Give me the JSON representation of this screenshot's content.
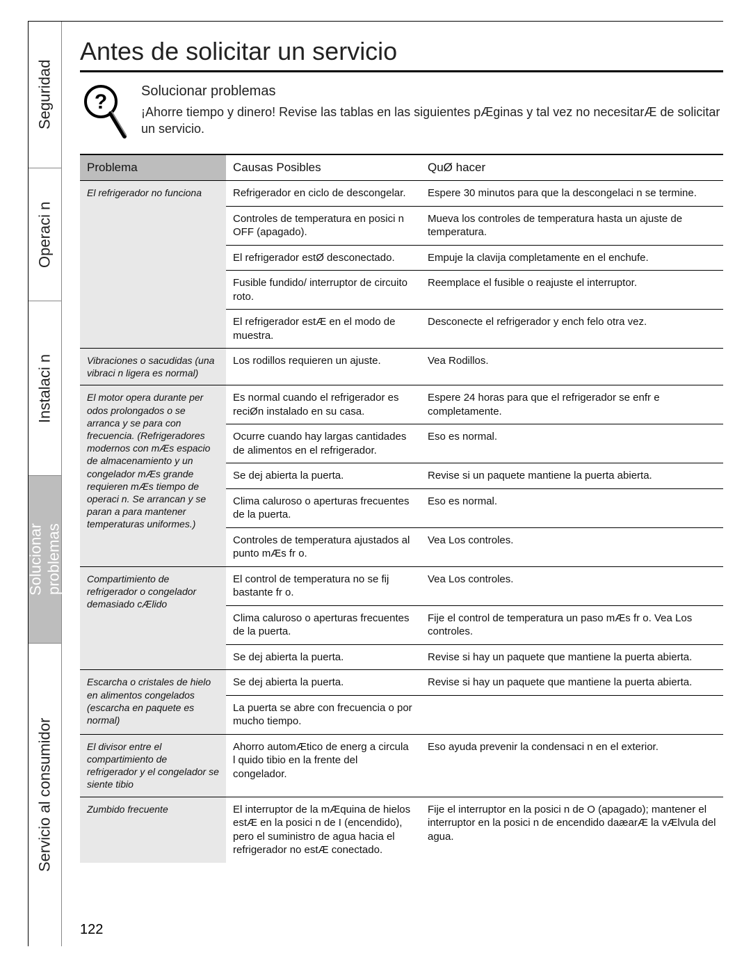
{
  "page": {
    "title": "Antes de solicitar un servicio",
    "page_number": "122"
  },
  "tabs": {
    "seguridad": "Seguridad",
    "operacion": "Operaci n",
    "instalacion": "Instalaci n",
    "solucionar": "Solucionar problemas",
    "servicio": "Servicio al consumidor"
  },
  "intro": {
    "heading": "Solucionar problemas",
    "body": "¡Ahorre tiempo y dinero! Revise las tablas en las siguientes pÆginas y tal vez no necesitarÆ de solicitar un servicio."
  },
  "headers": {
    "problema": "Problema",
    "causas": "Causas Posibles",
    "que": "QuØ hacer"
  },
  "groups": [
    {
      "problem": "El refrigerador no funciona",
      "rows": [
        {
          "cause": "Refrigerador en ciclo de descongelar.",
          "sol": "Espere 30 minutos para que la descongelaci n se termine."
        },
        {
          "cause": "Controles de temperatura en posici n OFF (apagado).",
          "sol": "Mueva los controles de temperatura hasta un ajuste de temperatura."
        },
        {
          "cause": "El refrigerador estØ desconectado.",
          "sol": "Empuje la clavija completamente en el enchufe."
        },
        {
          "cause": "Fusible fundido/ interruptor de circuito roto.",
          "sol": "Reemplace el fusible o reajuste el interruptor."
        },
        {
          "cause": "El refrigerador estÆ en el modo de muestra.",
          "sol": "Desconecte el refrigerador y ench felo otra vez."
        }
      ]
    },
    {
      "problem": "Vibraciones o sacudidas (una vibraci n ligera es normal)",
      "rows": [
        {
          "cause": "Los rodillos requieren un ajuste.",
          "sol": "Vea Rodillos."
        }
      ]
    },
    {
      "problem": "El motor opera durante per odos prolongados o se arranca y se para con frecuencia. (Refrigeradores modernos con mÆs espacio de almacenamiento y un congelador mÆs grande requieren mÆs tiempo de operaci n. Se arrancan y se paran a para mantener temperaturas uniformes.)",
      "rows": [
        {
          "cause": "Es normal cuando el refrigerador es reciØn instalado en su casa.",
          "sol": "Espere 24 horas para que el refrigerador se enfr e completamente."
        },
        {
          "cause": "Ocurre cuando hay largas cantidades de alimentos en el refrigerador.",
          "sol": "Eso es normal."
        },
        {
          "cause": "Se dej abierta la puerta.",
          "sol": "Revise si un paquete mantiene la puerta abierta."
        },
        {
          "cause": "Clima caluroso o aperturas frecuentes de la puerta.",
          "sol": "Eso es normal."
        },
        {
          "cause": "Controles de temperatura ajustados al punto mÆs fr o.",
          "sol": "Vea Los controles."
        }
      ]
    },
    {
      "problem": "Compartimiento de refrigerador o congelador demasiado cÆlido",
      "rows": [
        {
          "cause": "El control de temperatura no se fij bastante fr o.",
          "sol": "Vea Los controles."
        },
        {
          "cause": "Clima caluroso o aperturas frecuentes de la puerta.",
          "sol": "Fije el control de temperatura un paso mÆs fr o. Vea Los controles."
        },
        {
          "cause": "Se dej abierta la puerta.",
          "sol": "Revise si hay un paquete que mantiene la puerta abierta."
        }
      ]
    },
    {
      "problem": "Escarcha o cristales de hielo en alimentos congelados (escarcha en paquete es normal)",
      "rows": [
        {
          "cause": "Se dej abierta la puerta.",
          "sol": "Revise si hay un paquete que mantiene la puerta abierta."
        },
        {
          "cause": "La puerta se abre con frecuencia o por mucho tiempo.",
          "sol": ""
        }
      ]
    },
    {
      "problem": "El divisor entre el compartimiento de refrigerador y el congelador se siente tibio",
      "rows": [
        {
          "cause": "Ahorro automÆtico de energ a circula l quido tibio en la frente del congelador.",
          "sol": "Eso ayuda prevenir la condensaci n en el exterior."
        }
      ]
    },
    {
      "problem": "Zumbido frecuente",
      "rows": [
        {
          "cause": "El interruptor de la mÆquina de hielos estÆ en la posici n de I (encendido), pero el suministro de agua hacia el refrigerador no estÆ conectado.",
          "sol": "Fije el interruptor en la posici n de O (apagado); mantener el interruptor en la posici n de encendido daæarÆ la vÆlvula del agua."
        }
      ]
    }
  ],
  "colors": {
    "header_bg": "#bdbdbd",
    "prob_bg": "#e8e8e8",
    "rule": "#000000",
    "text": "#111111"
  }
}
